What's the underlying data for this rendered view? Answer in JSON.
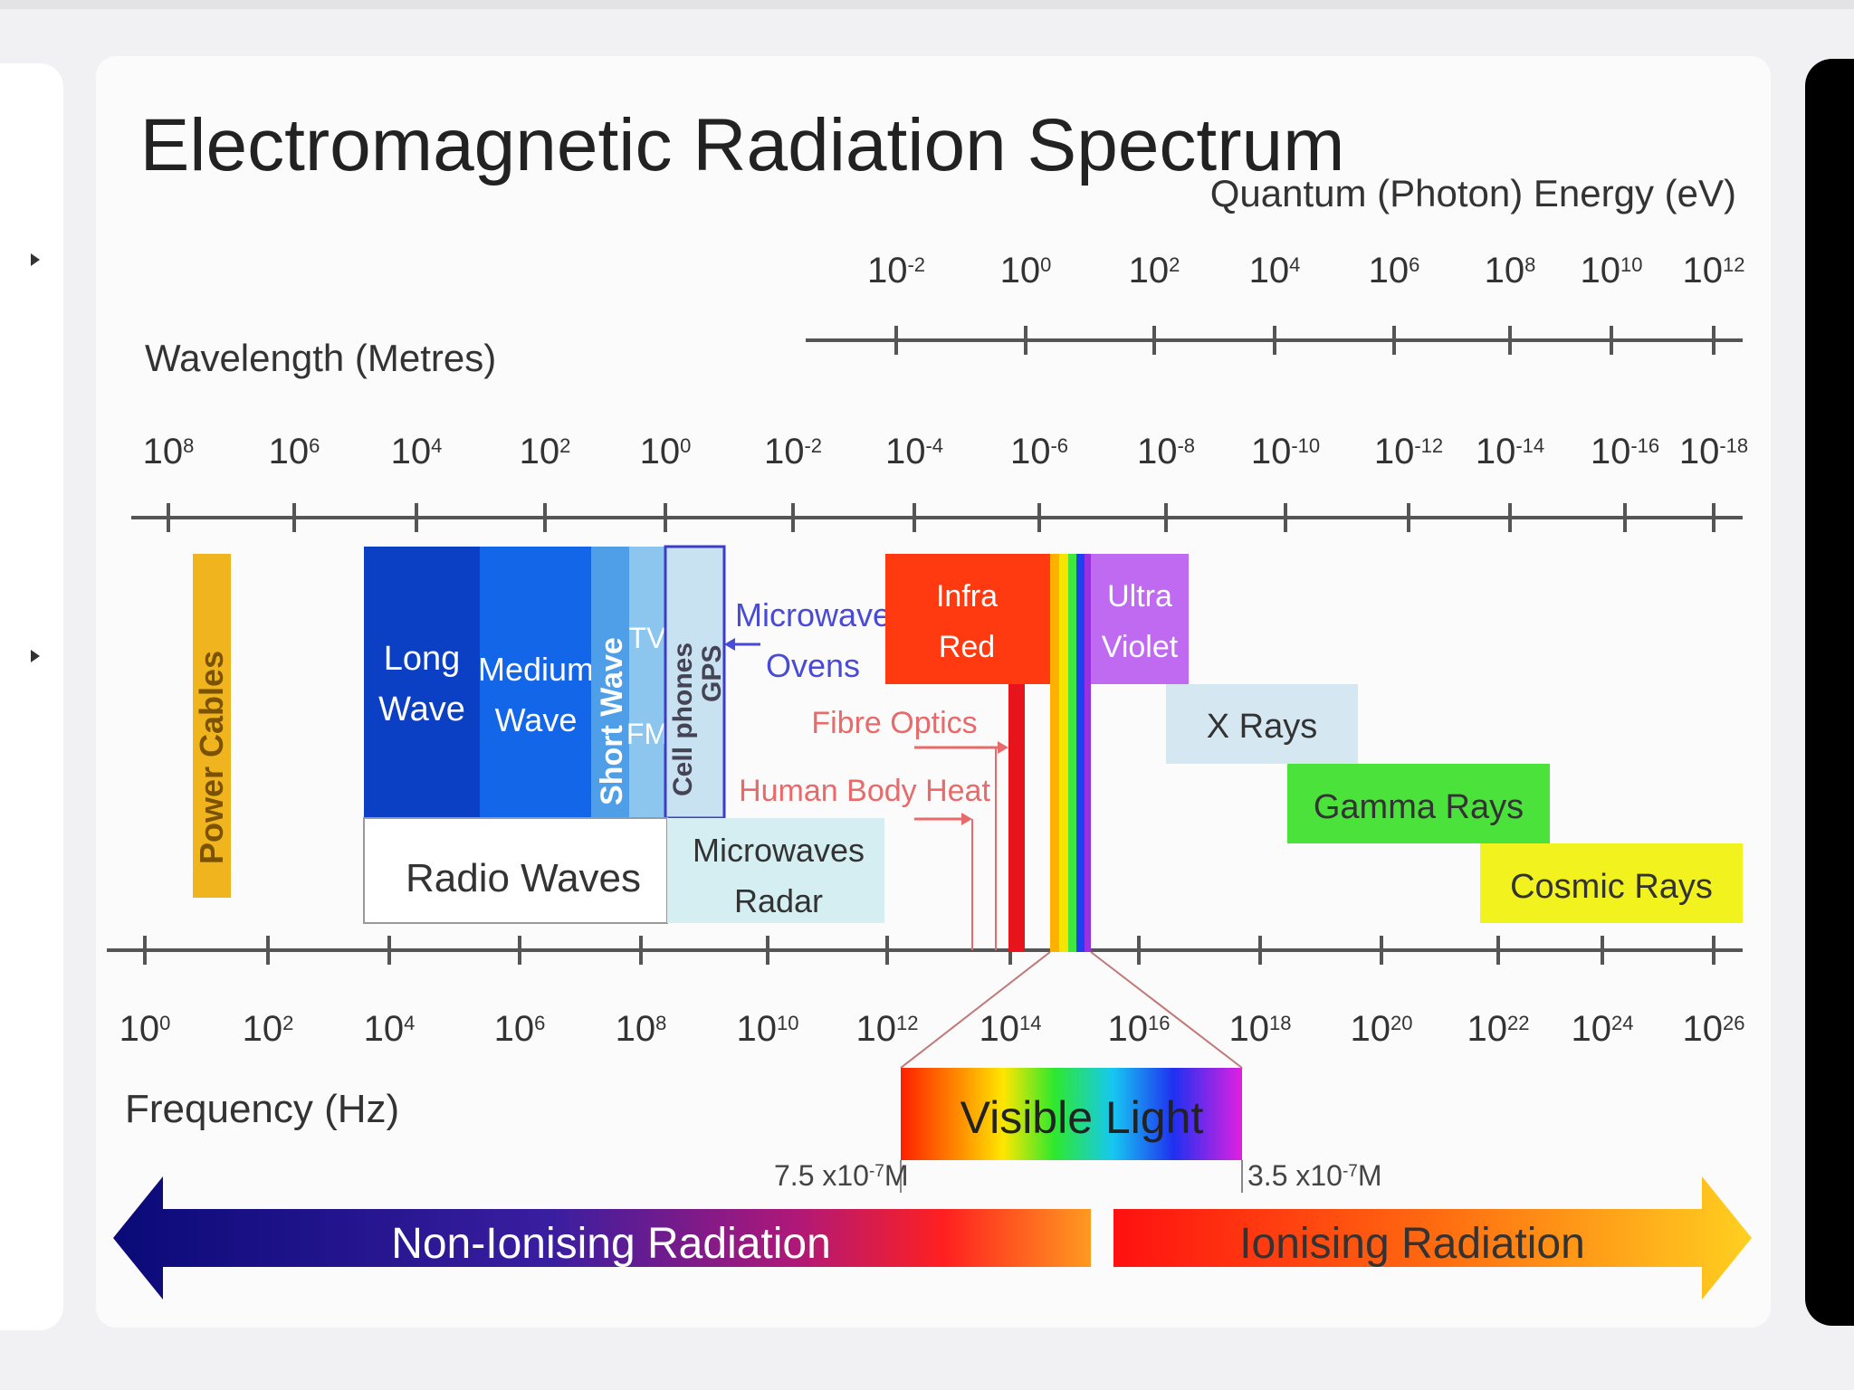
{
  "title": "Electromagnetic Radiation Spectrum",
  "energy_axis": {
    "label": "Quantum (Photon) Energy (eV)",
    "ticks": [
      "10",
      "10",
      "10",
      "10",
      "10",
      "10",
      "10",
      "10"
    ],
    "exponents": [
      "-2",
      "0",
      "2",
      "4",
      "6",
      "8",
      "10",
      "12"
    ]
  },
  "wavelength_axis": {
    "label": "Wavelength (Metres)",
    "ticks": [
      "10",
      "10",
      "10",
      "10",
      "10",
      "10",
      "10",
      "10",
      "10",
      "10",
      "10",
      "10",
      "10",
      "10"
    ],
    "exponents": [
      "8",
      "6",
      "4",
      "2",
      "0",
      "-2",
      "-4",
      "-6",
      "-8",
      "-10",
      "-12",
      "-14",
      "-16",
      "-18"
    ]
  },
  "frequency_axis": {
    "label": "Frequency (Hz)",
    "ticks": [
      "10",
      "10",
      "10",
      "10",
      "10",
      "10",
      "10",
      "10",
      "10",
      "10",
      "10",
      "10",
      "10",
      "10"
    ],
    "exponents": [
      "0",
      "2",
      "4",
      "6",
      "8",
      "10",
      "12",
      "14",
      "16",
      "18",
      "20",
      "22",
      "24",
      "26"
    ]
  },
  "bands": {
    "power_cables": "Power Cables",
    "long_wave": [
      "Long",
      "Wave"
    ],
    "medium_wave": [
      "Medium",
      "Wave"
    ],
    "short_wave": "Short Wave",
    "tv": "TV",
    "fm": "FM",
    "cell_phones": "Cell phones",
    "gps": "GPS",
    "microwave_ovens": [
      "Microwave",
      "Ovens"
    ],
    "fibre_optics": "Fibre Optics",
    "human_body_heat": "Human Body Heat",
    "infra_red": [
      "Infra",
      "Red"
    ],
    "ultra_violet": [
      "Ultra",
      "Violet"
    ],
    "x_rays": "X Rays",
    "gamma_rays": "Gamma Rays",
    "cosmic_rays": "Cosmic Rays",
    "radio_waves": "Radio Waves",
    "microwaves_radar": [
      "Microwaves",
      "Radar"
    ]
  },
  "visible_light": {
    "label": "Visible Light",
    "left_limit": "7.5 x10",
    "left_exp": "-7",
    "left_unit": "M",
    "right_limit": "3.5 x10",
    "right_exp": "-7",
    "right_unit": "M"
  },
  "radiation": {
    "non_ionising": "Non-Ionising Radiation",
    "ionising": "Ionising Radiation"
  },
  "colors": {
    "long_wave": "#0b3fc4",
    "medium_wave": "#1366e8",
    "short_wave": "#4f9fe8",
    "tv_fm": "#8cc6ee",
    "cell_phones": "#c9e2f2",
    "infra_red": "#ff3a10",
    "ultra_violet": "#bf6af0",
    "x_rays": "#d5e8f2",
    "gamma_rays": "#4be23c",
    "cosmic_rays": "#f2f21e",
    "power_cables": "#f0b41e"
  }
}
